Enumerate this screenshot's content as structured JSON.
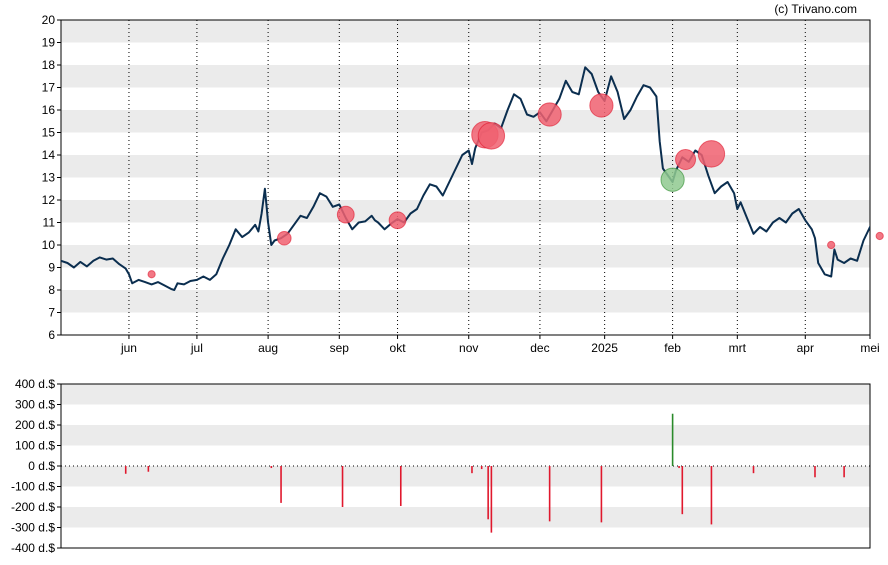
{
  "credit": "(c) Trivano.com",
  "colors": {
    "line": "#0b2e4f",
    "band": "#ebebeb",
    "sell": "#e0182d",
    "buy": "#2a8a2a",
    "sell_bubble": "#f06070",
    "buy_bubble": "#8fc98f",
    "axis": "#000000"
  },
  "chart_data": [
    {
      "type": "line",
      "ylim": [
        6,
        20
      ],
      "yticks": [
        6,
        7,
        8,
        9,
        10,
        11,
        12,
        13,
        14,
        15,
        16,
        17,
        18,
        19,
        20
      ],
      "grid": "alternating horizontal bands, dotted vertical month lines",
      "month_labels": [
        "jun",
        "jul",
        "aug",
        "sep",
        "okt",
        "nov",
        "dec",
        "2025",
        "feb",
        "mrt",
        "apr",
        "mei"
      ],
      "x_index_range": [
        0,
        250
      ],
      "month_positions": [
        21,
        42,
        64,
        86,
        104,
        126,
        148,
        168,
        189,
        209,
        230,
        250
      ],
      "series": [
        {
          "points": [
            [
              0,
              9.3
            ],
            [
              2,
              9.2
            ],
            [
              4,
              9.0
            ],
            [
              6,
              9.25
            ],
            [
              8,
              9.05
            ],
            [
              10,
              9.3
            ],
            [
              12,
              9.45
            ],
            [
              14,
              9.35
            ],
            [
              16,
              9.4
            ],
            [
              18,
              9.15
            ],
            [
              20,
              8.95
            ],
            [
              21,
              8.7
            ],
            [
              22,
              8.3
            ],
            [
              24,
              8.45
            ],
            [
              26,
              8.35
            ],
            [
              28,
              8.25
            ],
            [
              30,
              8.35
            ],
            [
              32,
              8.2
            ],
            [
              34,
              8.05
            ],
            [
              35,
              8.0
            ],
            [
              36,
              8.3
            ],
            [
              38,
              8.25
            ],
            [
              40,
              8.4
            ],
            [
              42,
              8.45
            ],
            [
              44,
              8.6
            ],
            [
              46,
              8.45
            ],
            [
              48,
              8.7
            ],
            [
              50,
              9.4
            ],
            [
              52,
              10.0
            ],
            [
              54,
              10.7
            ],
            [
              56,
              10.35
            ],
            [
              58,
              10.55
            ],
            [
              60,
              10.9
            ],
            [
              61,
              10.6
            ],
            [
              62,
              11.4
            ],
            [
              63,
              12.5
            ],
            [
              64,
              11.0
            ],
            [
              65,
              10.0
            ],
            [
              66,
              10.2
            ],
            [
              68,
              10.3
            ],
            [
              70,
              10.5
            ],
            [
              72,
              10.9
            ],
            [
              74,
              11.3
            ],
            [
              76,
              11.2
            ],
            [
              78,
              11.7
            ],
            [
              80,
              12.3
            ],
            [
              82,
              12.15
            ],
            [
              84,
              11.7
            ],
            [
              86,
              11.8
            ],
            [
              88,
              11.2
            ],
            [
              90,
              10.7
            ],
            [
              92,
              11.0
            ],
            [
              94,
              11.05
            ],
            [
              96,
              11.3
            ],
            [
              97,
              11.1
            ],
            [
              98,
              11.0
            ],
            [
              100,
              10.7
            ],
            [
              102,
              10.95
            ],
            [
              104,
              11.15
            ],
            [
              106,
              11.0
            ],
            [
              108,
              11.4
            ],
            [
              110,
              11.6
            ],
            [
              112,
              12.2
            ],
            [
              114,
              12.7
            ],
            [
              116,
              12.6
            ],
            [
              118,
              12.2
            ],
            [
              120,
              12.8
            ],
            [
              122,
              13.4
            ],
            [
              124,
              14.0
            ],
            [
              126,
              14.2
            ],
            [
              127,
              13.6
            ],
            [
              128,
              14.3
            ],
            [
              130,
              15.0
            ],
            [
              132,
              15.1
            ],
            [
              134,
              15.4
            ],
            [
              136,
              15.2
            ],
            [
              138,
              16.0
            ],
            [
              140,
              16.7
            ],
            [
              142,
              16.5
            ],
            [
              144,
              15.8
            ],
            [
              146,
              15.7
            ],
            [
              148,
              15.9
            ],
            [
              150,
              15.5
            ],
            [
              152,
              16.0
            ],
            [
              154,
              16.5
            ],
            [
              156,
              17.3
            ],
            [
              158,
              16.8
            ],
            [
              160,
              16.7
            ],
            [
              162,
              17.9
            ],
            [
              164,
              17.6
            ],
            [
              166,
              16.8
            ],
            [
              168,
              16.4
            ],
            [
              170,
              17.5
            ],
            [
              172,
              16.8
            ],
            [
              174,
              15.6
            ],
            [
              176,
              16.0
            ],
            [
              178,
              16.6
            ],
            [
              180,
              17.1
            ],
            [
              182,
              17.0
            ],
            [
              184,
              16.6
            ],
            [
              185,
              14.6
            ],
            [
              186,
              13.4
            ],
            [
              188,
              13.0
            ],
            [
              189,
              12.8
            ],
            [
              190,
              13.3
            ],
            [
              192,
              13.9
            ],
            [
              194,
              13.7
            ],
            [
              196,
              14.2
            ],
            [
              198,
              14.0
            ],
            [
              200,
              13.1
            ],
            [
              202,
              12.3
            ],
            [
              204,
              12.6
            ],
            [
              206,
              12.8
            ],
            [
              208,
              12.3
            ],
            [
              209,
              11.6
            ],
            [
              210,
              11.9
            ],
            [
              212,
              11.2
            ],
            [
              214,
              10.5
            ],
            [
              216,
              10.8
            ],
            [
              218,
              10.6
            ],
            [
              220,
              11.0
            ],
            [
              222,
              11.2
            ],
            [
              224,
              11.0
            ],
            [
              226,
              11.4
            ],
            [
              228,
              11.6
            ],
            [
              230,
              11.1
            ],
            [
              232,
              10.7
            ],
            [
              233,
              10.3
            ],
            [
              234,
              9.2
            ],
            [
              236,
              8.7
            ],
            [
              238,
              8.6
            ],
            [
              239,
              9.8
            ],
            [
              240,
              9.35
            ],
            [
              242,
              9.2
            ],
            [
              244,
              9.4
            ],
            [
              246,
              9.3
            ],
            [
              248,
              10.2
            ],
            [
              250,
              10.8
            ],
            [
              252,
              11.0
            ],
            [
              254,
              11.05
            ],
            [
              255,
              10.1
            ],
            [
              256,
              9.8
            ]
          ]
        }
      ],
      "markers": [
        {
          "x": 28,
          "y": 8.7,
          "type": "sell",
          "size": 1
        },
        {
          "x": 69,
          "y": 10.3,
          "type": "sell",
          "size": 3
        },
        {
          "x": 88,
          "y": 11.35,
          "type": "sell",
          "size": 4
        },
        {
          "x": 104,
          "y": 11.1,
          "type": "sell",
          "size": 4
        },
        {
          "x": 131,
          "y": 14.9,
          "type": "sell",
          "size": 7
        },
        {
          "x": 133,
          "y": 14.85,
          "type": "sell",
          "size": 7
        },
        {
          "x": 151,
          "y": 15.8,
          "type": "sell",
          "size": 6
        },
        {
          "x": 167,
          "y": 16.2,
          "type": "sell",
          "size": 6
        },
        {
          "x": 189,
          "y": 12.9,
          "type": "buy",
          "size": 6
        },
        {
          "x": 193,
          "y": 13.8,
          "type": "sell",
          "size": 5
        },
        {
          "x": 201,
          "y": 14.05,
          "type": "sell",
          "size": 7
        },
        {
          "x": 238,
          "y": 10.0,
          "type": "sell",
          "size": 1
        },
        {
          "x": 253,
          "y": 10.4,
          "type": "sell",
          "size": 1
        }
      ]
    },
    {
      "type": "bar",
      "ylim": [
        -400,
        400
      ],
      "yticks": [
        -400,
        -300,
        -200,
        -100,
        0,
        100,
        200,
        300,
        400
      ],
      "ytick_labels": [
        "-400 d.$",
        "-300 d.$",
        "-200 d.$",
        "-100 d.$",
        "0 d.$",
        "100 d.$",
        "200 d.$",
        "300 d.$",
        "400 d.$"
      ],
      "bars": [
        {
          "x": 20,
          "value": -38
        },
        {
          "x": 27,
          "value": -28
        },
        {
          "x": 65,
          "value": -10
        },
        {
          "x": 68,
          "value": -180
        },
        {
          "x": 87,
          "value": -200
        },
        {
          "x": 105,
          "value": -195
        },
        {
          "x": 127,
          "value": -35
        },
        {
          "x": 130,
          "value": -15
        },
        {
          "x": 132,
          "value": -260
        },
        {
          "x": 133,
          "value": -325
        },
        {
          "x": 151,
          "value": -270
        },
        {
          "x": 167,
          "value": -275
        },
        {
          "x": 189,
          "value": 255
        },
        {
          "x": 191,
          "value": -10
        },
        {
          "x": 192,
          "value": -235
        },
        {
          "x": 201,
          "value": -285
        },
        {
          "x": 214,
          "value": -35
        },
        {
          "x": 233,
          "value": -55
        },
        {
          "x": 242,
          "value": -55
        }
      ]
    }
  ]
}
